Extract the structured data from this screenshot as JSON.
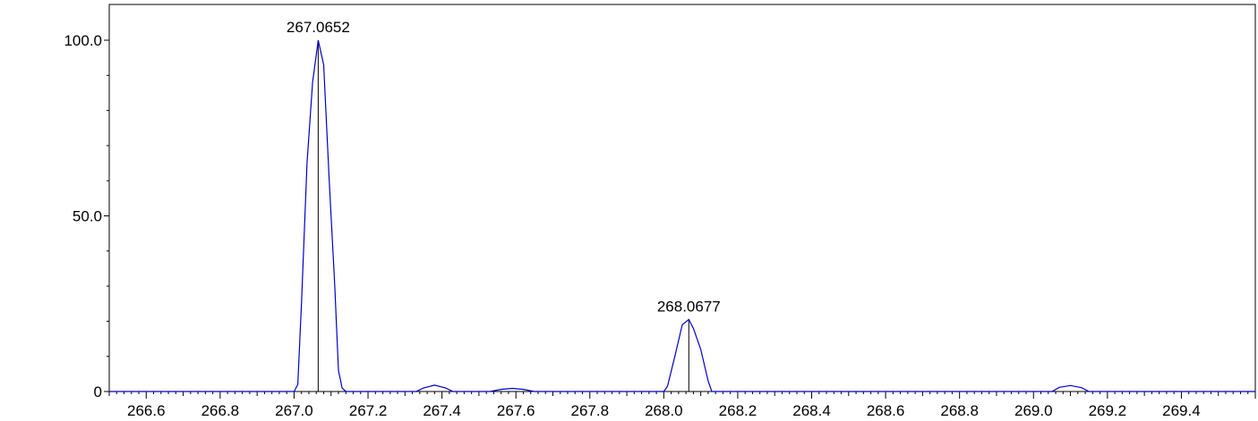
{
  "chart_data": {
    "type": "line",
    "title": "",
    "xlabel": "",
    "ylabel": "",
    "xlim": [
      266.5,
      269.6
    ],
    "ylim": [
      0,
      100
    ],
    "x_ticks": [
      266.6,
      266.8,
      267.0,
      267.2,
      267.4,
      267.6,
      267.8,
      268.0,
      268.2,
      268.4,
      268.6,
      268.8,
      269.0,
      269.2,
      269.4
    ],
    "x_tick_labels": [
      "266.6",
      "266.8",
      "267.0",
      "267.2",
      "267.4",
      "267.6",
      "267.8",
      "268.0",
      "268.2",
      "268.4",
      "268.6",
      "268.8",
      "269.0",
      "269.2",
      "269.4"
    ],
    "y_ticks": [
      0,
      50,
      100
    ],
    "y_tick_labels": [
      "0",
      "50.0",
      "100.0"
    ],
    "grid": false,
    "series": [
      {
        "color": "#0000cc",
        "x": [
          266.5,
          267.0,
          267.01,
          267.02,
          267.035,
          267.05,
          267.0652,
          267.08,
          267.095,
          267.11,
          267.12,
          267.13,
          267.14,
          267.33,
          267.35,
          267.38,
          267.41,
          267.43,
          267.53,
          267.56,
          267.59,
          267.62,
          267.65,
          268.0,
          268.01,
          268.03,
          268.05,
          268.0677,
          268.08,
          268.1,
          268.12,
          268.13,
          269.05,
          269.07,
          269.1,
          269.13,
          269.15,
          269.6
        ],
        "y": [
          0,
          0,
          2,
          25,
          65,
          88,
          100,
          93,
          60,
          30,
          6,
          1,
          0,
          0,
          1,
          1.8,
          1,
          0,
          0,
          0.6,
          0.9,
          0.6,
          0,
          0,
          1.5,
          10,
          19,
          20.5,
          18,
          12,
          3,
          0,
          0,
          1.2,
          1.7,
          1.1,
          0,
          0
        ]
      }
    ],
    "sticks": [
      {
        "x": 267.0652,
        "y": 100
      },
      {
        "x": 268.0677,
        "y": 20.5
      }
    ],
    "annotations": [
      {
        "text": "267.0652",
        "x": 267.0652,
        "y": 100
      },
      {
        "text": "268.0677",
        "x": 268.0677,
        "y": 20.5
      }
    ]
  }
}
